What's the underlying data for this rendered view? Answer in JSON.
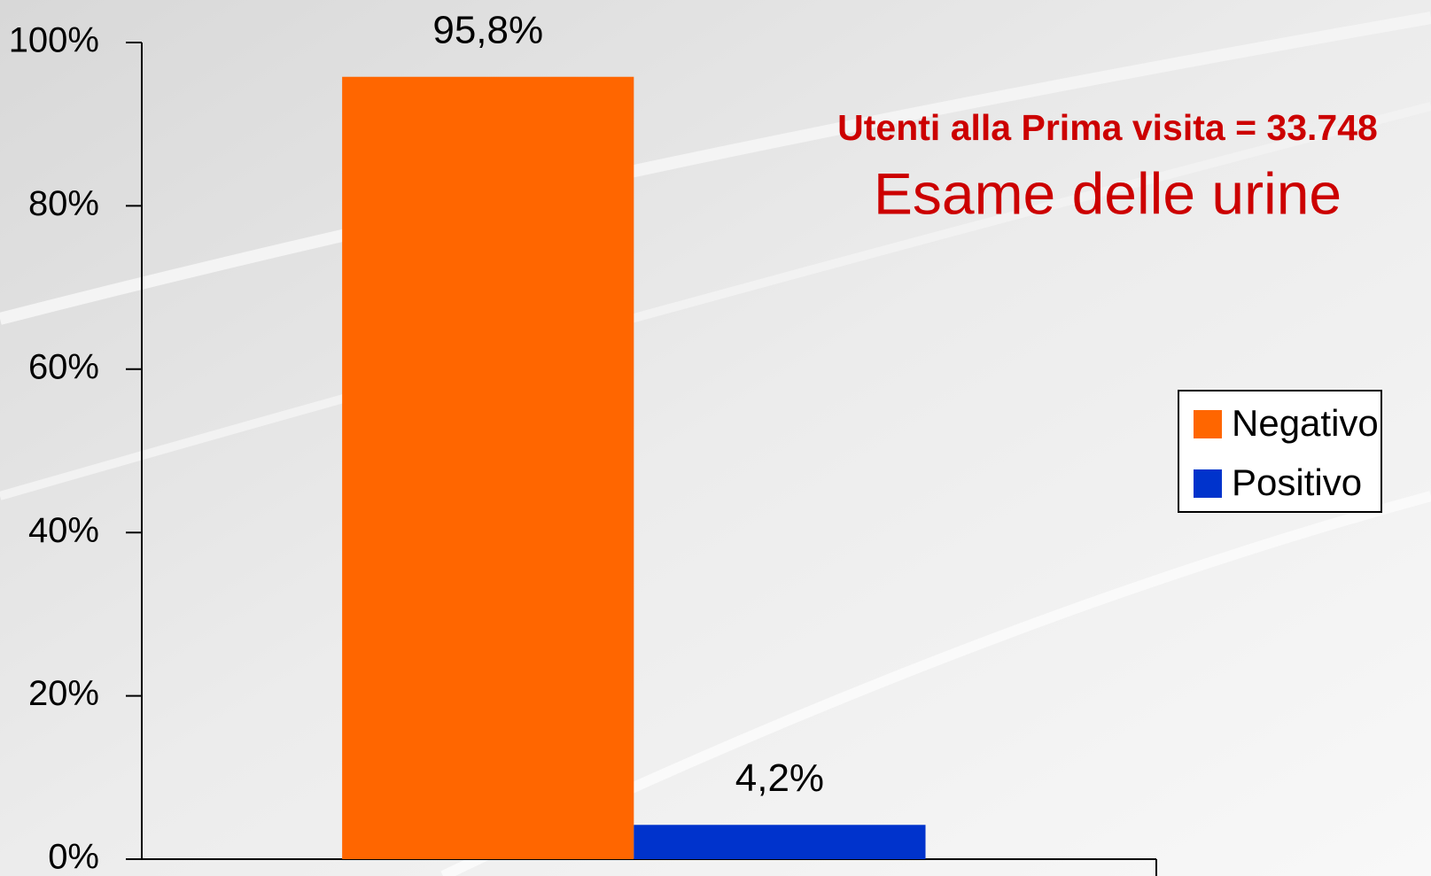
{
  "chart_data": {
    "type": "bar",
    "title": "Esame delle urine",
    "subtitle": "Utenti alla Prima visita = 33.748",
    "categories": [
      null
    ],
    "series": [
      {
        "name": "Negativo",
        "color": "#ff6600",
        "values": [
          95.8
        ],
        "value_labels": [
          "95,8%"
        ]
      },
      {
        "name": "Positivo",
        "color": "#0033cc",
        "values": [
          4.2
        ],
        "value_labels": [
          "4,2%"
        ]
      }
    ],
    "ylim": [
      0,
      100
    ],
    "yticks": [
      {
        "value": 0,
        "label": "0%"
      },
      {
        "value": 20,
        "label": "20%"
      },
      {
        "value": 40,
        "label": "40%"
      },
      {
        "value": 60,
        "label": "60%"
      },
      {
        "value": 80,
        "label": "80%"
      },
      {
        "value": 100,
        "label": "100%"
      }
    ],
    "grid": false,
    "legend": "right"
  }
}
